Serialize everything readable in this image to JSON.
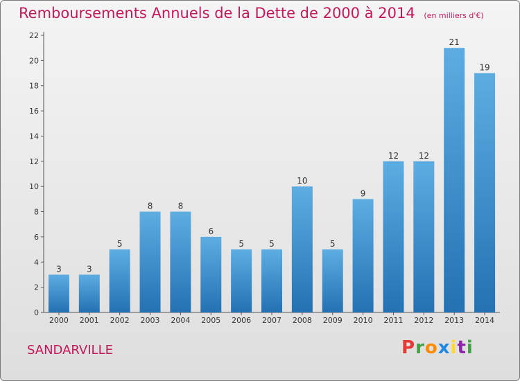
{
  "header": {
    "title": "Remboursements Annuels de la Dette de 2000 à 2014",
    "subtitle": "(en milliers d'€)"
  },
  "footer": {
    "location": "SANDARVILLE",
    "brand_letters": [
      "P",
      "r",
      "o",
      "x",
      "i",
      "t",
      "i"
    ],
    "brand_colors": [
      "#e53935",
      "#43a047",
      "#fb8c00",
      "#1e88e5",
      "#fdd835",
      "#8e24aa",
      "#43a047"
    ]
  },
  "chart_data": {
    "type": "bar",
    "categories": [
      "2000",
      "2001",
      "2002",
      "2003",
      "2004",
      "2005",
      "2006",
      "2007",
      "2008",
      "2009",
      "2010",
      "2011",
      "2012",
      "2013",
      "2014"
    ],
    "values": [
      3,
      3,
      5,
      8,
      8,
      6,
      5,
      5,
      10,
      5,
      9,
      12,
      12,
      21,
      19
    ],
    "ylim": [
      0,
      22
    ],
    "yticks": [
      0,
      2,
      4,
      6,
      8,
      10,
      12,
      14,
      16,
      18,
      20,
      22
    ],
    "grid": false,
    "bar_color_top": "#5dade2",
    "bar_color_bottom": "#2471b3"
  }
}
